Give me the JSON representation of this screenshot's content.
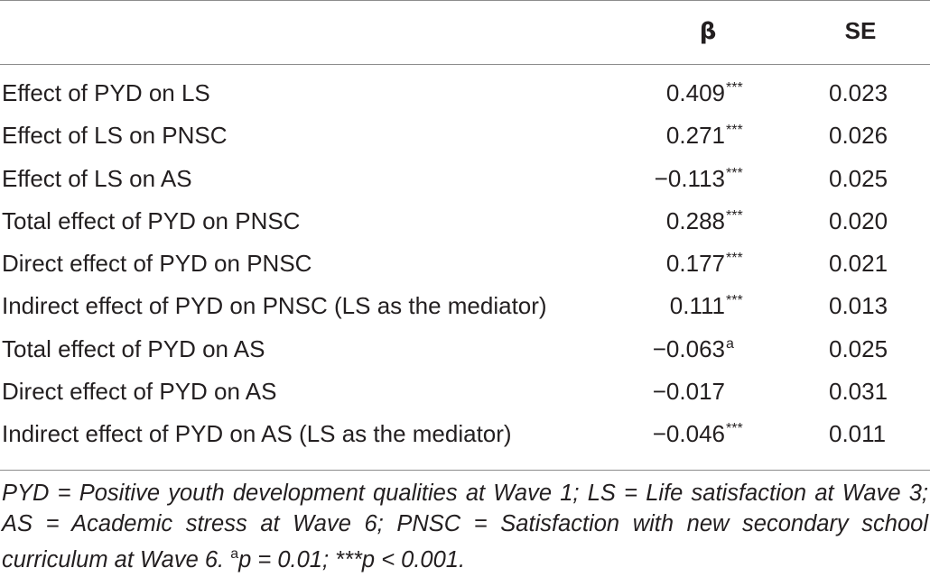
{
  "table": {
    "columns": {
      "label": "",
      "beta": "β",
      "se": "SE"
    },
    "rows": [
      {
        "label": "Effect of PYD on LS",
        "beta": "0.409",
        "beta_sup": "***",
        "se": "0.023"
      },
      {
        "label": "Effect of LS on PNSC",
        "beta": "0.271",
        "beta_sup": "***",
        "se": "0.026"
      },
      {
        "label": "Effect of LS on AS",
        "beta": "−0.113",
        "beta_sup": "***",
        "se": "0.025"
      },
      {
        "label": "Total effect of PYD on PNSC",
        "beta": "0.288",
        "beta_sup": "***",
        "se": "0.020"
      },
      {
        "label": "Direct effect of PYD on PNSC",
        "beta": "0.177",
        "beta_sup": "***",
        "se": "0.021"
      },
      {
        "label": "Indirect effect of PYD on PNSC (LS as the mediator)",
        "beta": "0.111",
        "beta_sup": "***",
        "se": "0.013"
      },
      {
        "label": "Total effect of PYD on AS",
        "beta": "−0.063",
        "beta_sup": "a",
        "se": "0.025"
      },
      {
        "label": "Direct effect of PYD on AS",
        "beta": "−0.017",
        "beta_sup": "",
        "se": "0.031"
      },
      {
        "label": "Indirect effect of PYD on AS (LS as the mediator)",
        "beta": "−0.046",
        "beta_sup": "***",
        "se": "0.011"
      }
    ]
  },
  "footnote": {
    "text_main": "PYD = Positive youth development qualities at Wave 1; LS = Life satisfaction at Wave 3; AS = Academic stress at Wave 6; PNSC = Satisfaction with new secondary school curriculum at Wave 6. ",
    "sup_a": "a",
    "text_a": "p = 0.01; ***p < 0.001."
  }
}
